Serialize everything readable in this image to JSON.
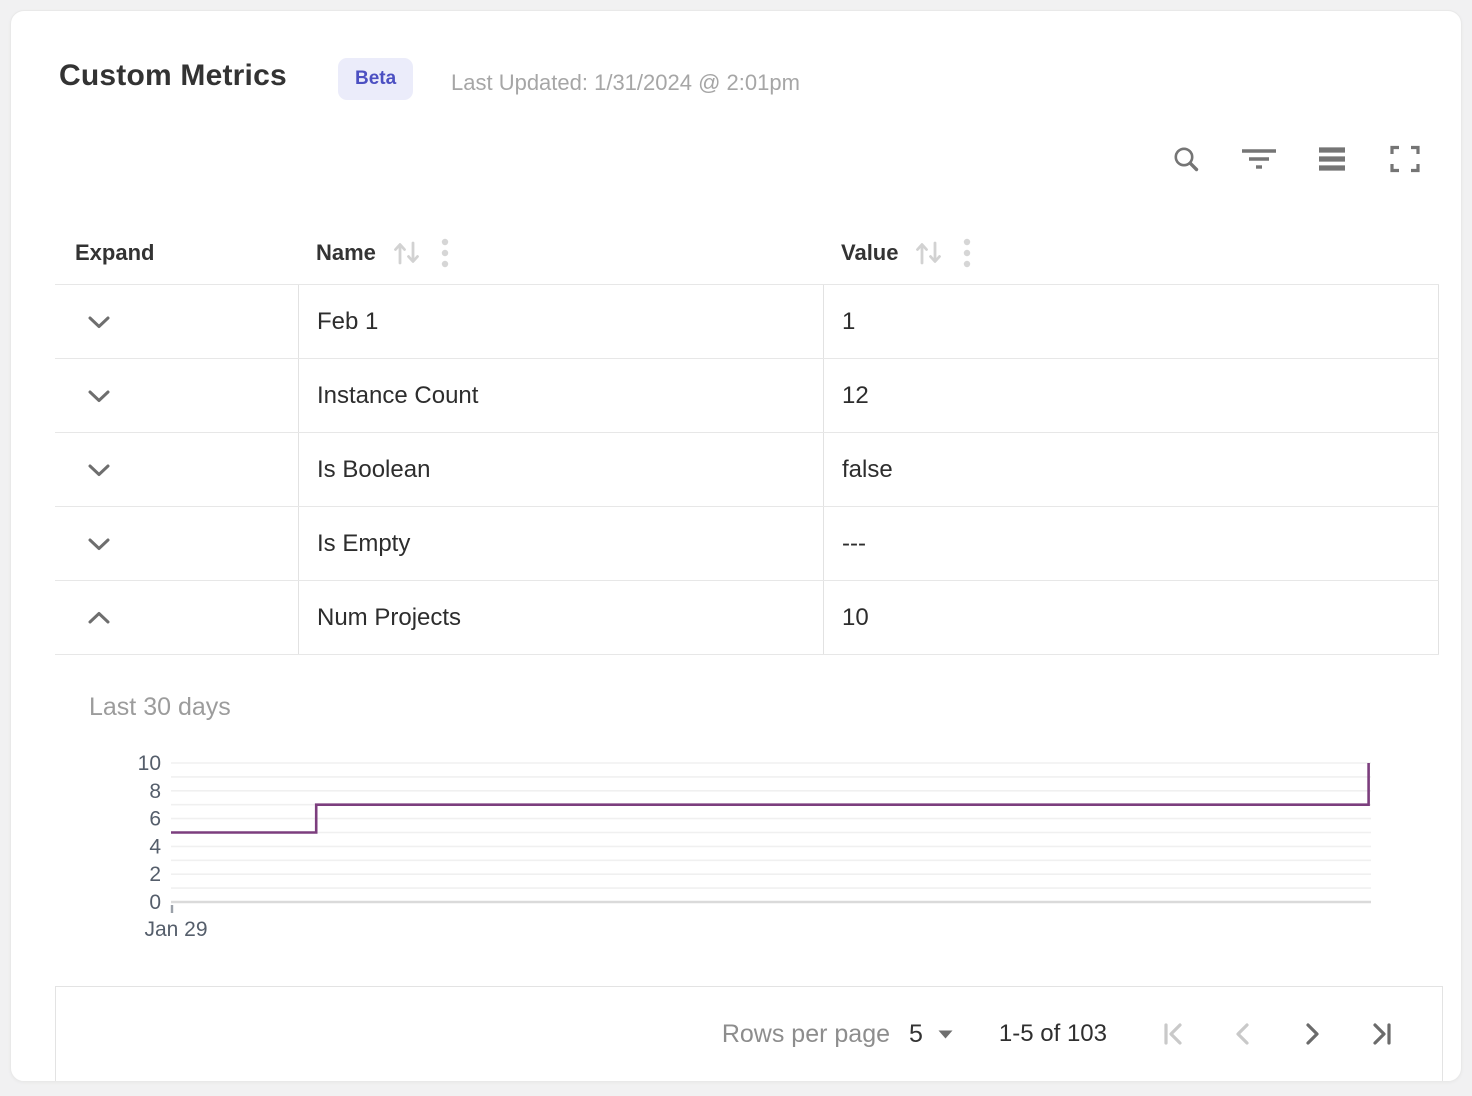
{
  "header": {
    "title": "Custom Metrics",
    "badge": "Beta",
    "last_updated": "Last Updated: 1/31/2024 @ 2:01pm"
  },
  "toolbar": {
    "icons": [
      "search-icon",
      "filter-icon",
      "density-icon",
      "fullscreen-icon"
    ]
  },
  "table": {
    "columns": [
      {
        "label": "Expand",
        "sortable": false
      },
      {
        "label": "Name",
        "sortable": true
      },
      {
        "label": "Value",
        "sortable": true
      }
    ],
    "rows": [
      {
        "name": "Feb 1",
        "value": "1",
        "expanded": false
      },
      {
        "name": "Instance Count",
        "value": "12",
        "expanded": false
      },
      {
        "name": "Is Boolean",
        "value": "false",
        "expanded": false
      },
      {
        "name": "Is Empty",
        "value": "---",
        "expanded": false
      },
      {
        "name": "Num Projects",
        "value": "10",
        "expanded": true
      }
    ]
  },
  "expanded_panel": {
    "title": "Last 30 days",
    "for_row": "Num Projects"
  },
  "chart_data": {
    "type": "line",
    "step": "after",
    "title": "Last 30 days",
    "series": [
      {
        "name": "Num Projects",
        "points_x_fraction_value": [
          [
            0,
            5
          ],
          [
            0.121,
            7
          ],
          [
            0.998,
            10
          ]
        ]
      }
    ],
    "ylim": [
      0,
      10
    ],
    "yticks": [
      0,
      2,
      4,
      6,
      8,
      10
    ],
    "gridline_every": 1,
    "grid": true,
    "x_tick_labels": [
      "Jan 29"
    ],
    "legend": "none",
    "line_color": "#7c3e7e"
  },
  "footer": {
    "rows_per_page_label": "Rows per page",
    "rows_per_page_value": "5",
    "range_label": "1-5 of 103",
    "pagination": {
      "first_enabled": false,
      "prev_enabled": false,
      "next_enabled": true,
      "last_enabled": true
    }
  },
  "colors": {
    "accent_line": "#7c3e7e",
    "badge_bg": "#ebecfa",
    "badge_text": "#4c50c2",
    "icon_gray": "#757575",
    "icon_disabled": "#c9c9c9",
    "axis_label": "#555e6b",
    "muted_text": "#9c9c9c"
  }
}
